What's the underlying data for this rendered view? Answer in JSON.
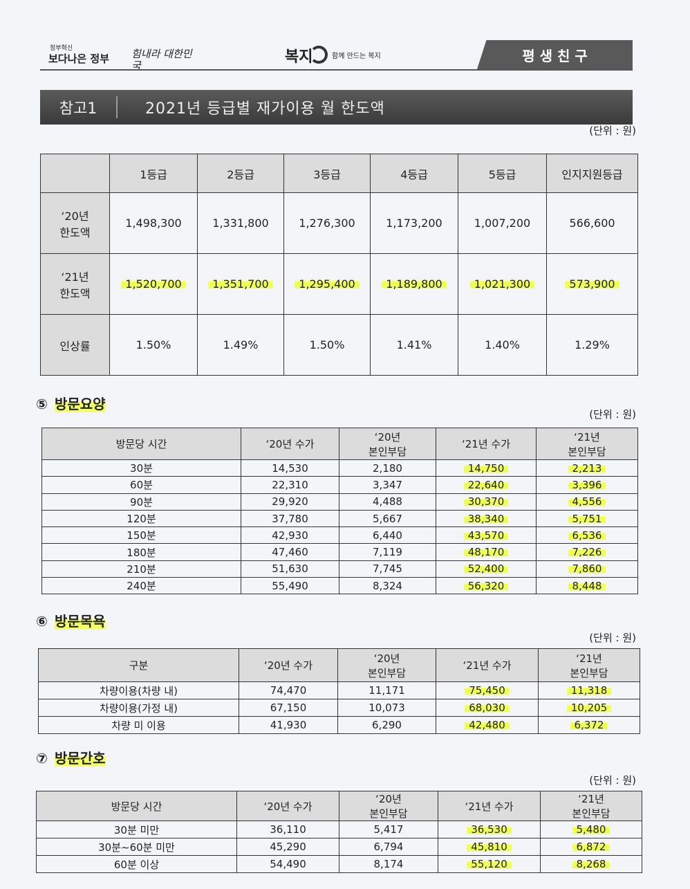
{
  "header": {
    "gov_small": "정부혁신",
    "gov": "보다나은 정부",
    "slogan": "힘내라 대한민국",
    "brand": "복지",
    "brand_tagline": "함께 만드는 복지",
    "tag": "평 생 친 구"
  },
  "title": {
    "label": "참고1",
    "text": "2021년 등급별 재가이용 월 한도액"
  },
  "limits": {
    "unit": "(단위 : 원)",
    "table": {
      "header": [
        "1등급",
        "2등급",
        "3등급",
        "4등급",
        "5등급",
        "인지지원등급"
      ],
      "rows": [
        [
          "‘20년\n한도액",
          "1,498,300",
          "1,331,800",
          "1,276,300",
          "1,173,200",
          "1,007,200",
          "566,600"
        ],
        [
          "‘21년\n한도액",
          "1,520,700",
          "1,351,700",
          "1,295,400",
          "1,189,800",
          "1,021,300",
          "573,900"
        ],
        [
          "인상률",
          "1.50%",
          "1.49%",
          "1.50%",
          "1.41%",
          "1.40%",
          "1.29%"
        ]
      ]
    }
  },
  "sections": [
    {
      "number": "⑤",
      "title": "방문요양",
      "unit": "(단위 : 원)",
      "table": {
        "header": [
          "방문당 시간",
          "‘20년 수가",
          "‘20년\n본인부담",
          "‘21년 수가",
          "‘21년\n본인부담"
        ],
        "rows": [
          [
            "30분",
            "14,530",
            "2,180",
            "14,750",
            "2,213"
          ],
          [
            "60분",
            "22,310",
            "3,347",
            "22,640",
            "3,396"
          ],
          [
            "90분",
            "29,920",
            "4,488",
            "30,370",
            "4,556"
          ],
          [
            "120분",
            "37,780",
            "5,667",
            "38,340",
            "5,751"
          ],
          [
            "150분",
            "42,930",
            "6,440",
            "43,570",
            "6,536"
          ],
          [
            "180분",
            "47,460",
            "7,119",
            "48,170",
            "7,226"
          ],
          [
            "210분",
            "51,630",
            "7,745",
            "52,400",
            "7,860"
          ],
          [
            "240분",
            "55,490",
            "8,324",
            "56,320",
            "8,448"
          ]
        ]
      }
    },
    {
      "number": "⑥",
      "title": "방문목욕",
      "unit": "(단위 : 원)",
      "table": {
        "header": [
          "구분",
          "‘20년 수가",
          "‘20년\n본인부담",
          "‘21년 수가",
          "‘21년\n본인부담"
        ],
        "rows": [
          [
            "차량이용(차량 내)",
            "74,470",
            "11,171",
            "75,450",
            "11,318"
          ],
          [
            "차량이용(가정 내)",
            "67,150",
            "10,073",
            "68,030",
            "10,205"
          ],
          [
            "차량 미 이용",
            "41,930",
            "6,290",
            "42,480",
            "6,372"
          ]
        ]
      }
    },
    {
      "number": "⑦",
      "title": "방문간호",
      "unit": "(단위 : 원)",
      "table": {
        "header": [
          "방문당 시간",
          "‘20년 수가",
          "‘20년\n본인부담",
          "‘21년 수가",
          "‘21년\n본인부담"
        ],
        "rows": [
          [
            "30분 미만",
            "36,110",
            "5,417",
            "36,530",
            "5,480"
          ],
          [
            "30분~60분 미만",
            "45,290",
            "6,794",
            "45,810",
            "6,872"
          ],
          [
            "60분 이상",
            "54,490",
            "8,174",
            "55,120",
            "8,268"
          ]
        ]
      }
    }
  ]
}
